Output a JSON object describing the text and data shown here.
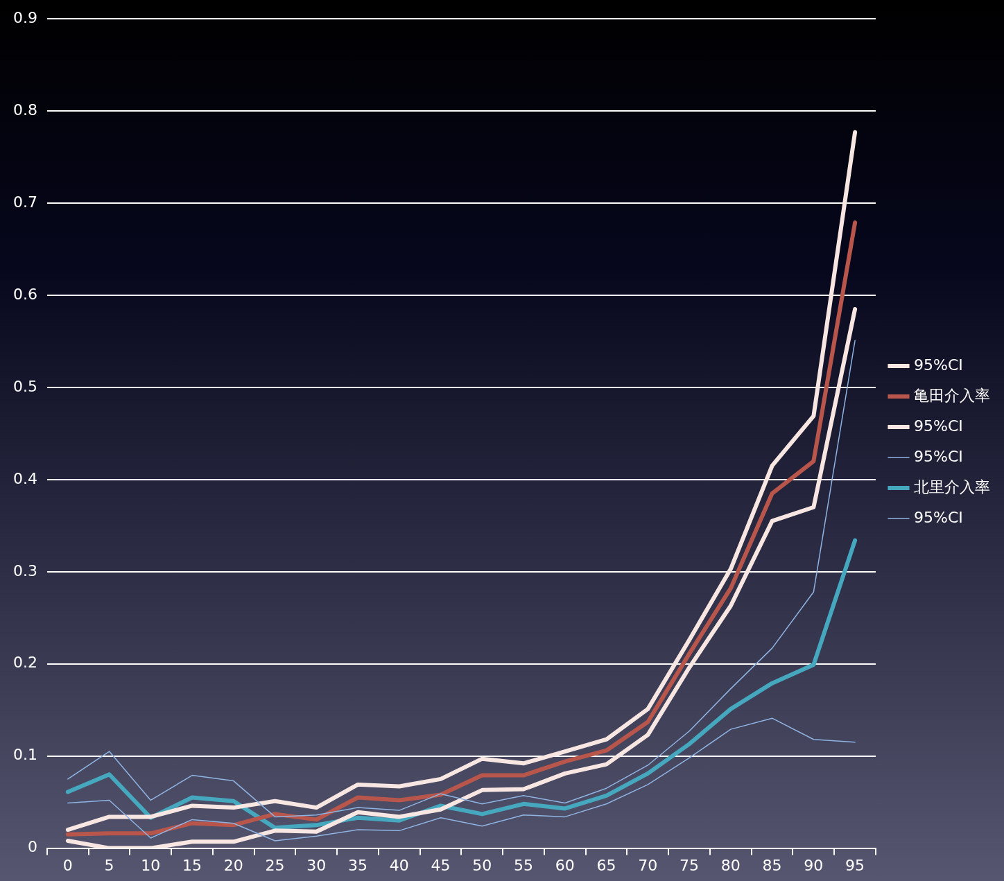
{
  "chart_data": {
    "type": "line",
    "categories": [
      "0",
      "5",
      "10",
      "15",
      "20",
      "25",
      "30",
      "35",
      "40",
      "45",
      "50",
      "55",
      "60",
      "65",
      "70",
      "75",
      "80",
      "85",
      "90",
      "95"
    ],
    "series": [
      {
        "name": "95%CI",
        "color": "#f7e6e2",
        "values": [
          0.02,
          0.034,
          0.034,
          0.046,
          0.044,
          0.051,
          0.044,
          0.069,
          0.067,
          0.075,
          0.097,
          0.092,
          0.105,
          0.118,
          0.151,
          0.226,
          0.303,
          0.415,
          0.469,
          0.777
        ]
      },
      {
        "name": "亀田介入率",
        "color": "#b9564c",
        "values": [
          0.015,
          0.016,
          0.016,
          0.027,
          0.025,
          0.037,
          0.031,
          0.055,
          0.052,
          0.058,
          0.079,
          0.079,
          0.094,
          0.106,
          0.137,
          0.211,
          0.282,
          0.385,
          0.42,
          0.679
        ]
      },
      {
        "name": "95%CI",
        "color": "#f7e6e2",
        "values": [
          0.008,
          0.0,
          0.0,
          0.007,
          0.007,
          0.019,
          0.018,
          0.039,
          0.034,
          0.042,
          0.063,
          0.064,
          0.081,
          0.091,
          0.123,
          0.196,
          0.263,
          0.355,
          0.37,
          0.585
        ]
      },
      {
        "name": "95%CI",
        "color": "#8fb4e3",
        "values": [
          0.075,
          0.105,
          0.052,
          0.079,
          0.073,
          0.034,
          0.036,
          0.044,
          0.041,
          0.059,
          0.048,
          0.057,
          0.049,
          0.065,
          0.09,
          0.127,
          0.173,
          0.217,
          0.278,
          0.551
        ]
      },
      {
        "name": "北里介入率",
        "color": "#45a8bf",
        "values": [
          0.061,
          0.08,
          0.033,
          0.055,
          0.051,
          0.022,
          0.025,
          0.033,
          0.03,
          0.046,
          0.037,
          0.048,
          0.043,
          0.057,
          0.081,
          0.113,
          0.151,
          0.179,
          0.199,
          0.334
        ]
      },
      {
        "name": "95%CI",
        "color": "#8fb4e3",
        "values": [
          0.049,
          0.052,
          0.011,
          0.031,
          0.027,
          0.008,
          0.013,
          0.02,
          0.019,
          0.033,
          0.024,
          0.036,
          0.034,
          0.048,
          0.069,
          0.098,
          0.129,
          0.141,
          0.118,
          0.115
        ]
      }
    ],
    "ylim": [
      0,
      0.9
    ],
    "yticks": [
      0,
      0.1,
      0.2,
      0.3,
      0.4,
      0.5,
      0.6,
      0.7,
      0.8,
      0.9
    ],
    "grid": "y",
    "legend": "right",
    "marker": "none",
    "line_style": "solid"
  }
}
